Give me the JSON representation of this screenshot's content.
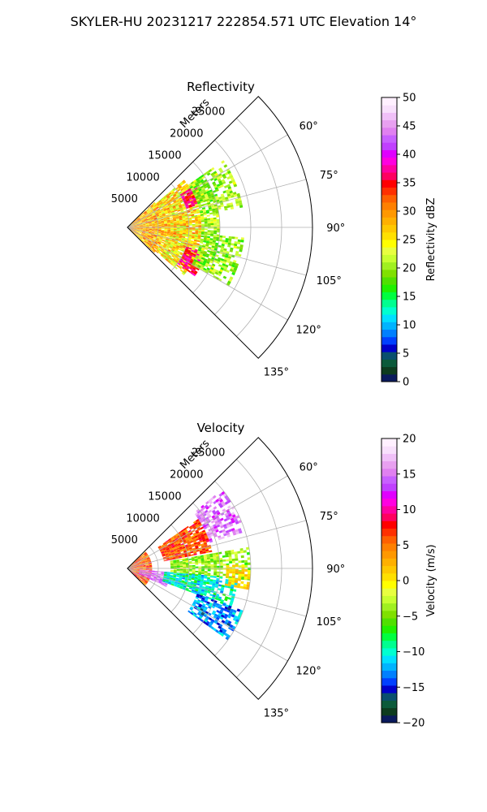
{
  "figure": {
    "title": "SKYLER-HU  20231217  222854.571 UTC Elevation 14°"
  },
  "chart_data": [
    {
      "type": "heatmap",
      "title": "Reflectivity",
      "range_label": "Meters",
      "range_ticks": [
        5000,
        10000,
        15000,
        20000,
        25000
      ],
      "range_tick_labels": [
        "5000",
        "10000",
        "15000",
        "20000",
        "25000"
      ],
      "rmax": 30000,
      "azimuth_range": [
        45,
        135
      ],
      "azimuth_ticks": [
        60,
        75,
        90,
        105,
        120,
        135
      ],
      "azimuth_tick_labels": [
        "60°",
        "75°",
        "90°",
        "105°",
        "120°",
        "135°"
      ],
      "grid": true,
      "colorbar": {
        "label": "Reflectivity dBZ",
        "range": [
          0,
          50
        ],
        "ticks": [
          0,
          5,
          10,
          15,
          20,
          25,
          30,
          35,
          40,
          45,
          50
        ],
        "tick_labels": [
          "0",
          "5",
          "10",
          "15",
          "20",
          "25",
          "30",
          "35",
          "40",
          "45",
          "50"
        ],
        "colors": [
          "#0a1a5c",
          "#0d3b1e",
          "#0b5a3a",
          "#0a4f6e",
          "#0000c8",
          "#0040ff",
          "#0080ff",
          "#00b4ff",
          "#00e0ff",
          "#00ffd0",
          "#00ff90",
          "#00ff40",
          "#20f000",
          "#50e000",
          "#80e000",
          "#a0f020",
          "#c8ff30",
          "#e8ff40",
          "#ffff00",
          "#ffe000",
          "#ffc800",
          "#ffb000",
          "#ff9800",
          "#ff8000",
          "#ff6000",
          "#ff3000",
          "#ff0000",
          "#ff0060",
          "#ff00a0",
          "#ff00e0",
          "#e000ff",
          "#c040ff",
          "#c860ff",
          "#e080f0",
          "#e8a0f0",
          "#f0c0f8",
          "#f8e0fc",
          "#fff0ff"
        ]
      },
      "field_model": {
        "description_units": "dBZ",
        "regions": [
          {
            "r0": 0,
            "r1": 6000,
            "a0": 47,
            "a1": 133,
            "v": 28,
            "jit": 6
          },
          {
            "r0": 6000,
            "r1": 12000,
            "a0": 50,
            "a1": 130,
            "v": 26,
            "jit": 6
          },
          {
            "r0": 10000,
            "r1": 13000,
            "a0": 58,
            "a1": 72,
            "v": 36,
            "jit": 3
          },
          {
            "r0": 10000,
            "r1": 13500,
            "a0": 108,
            "a1": 125,
            "v": 36,
            "jit": 3
          },
          {
            "r0": 12000,
            "r1": 19000,
            "a0": 55,
            "a1": 80,
            "v": 20,
            "jit": 4
          },
          {
            "r0": 12000,
            "r1": 19000,
            "a0": 95,
            "a1": 120,
            "v": 20,
            "jit": 4
          },
          {
            "r0": 12000,
            "r1": 15000,
            "a0": 80,
            "a1": 95,
            "v": 21,
            "jit": 4
          }
        ]
      }
    },
    {
      "type": "heatmap",
      "title": "Velocity",
      "range_label": "Meters",
      "range_ticks": [
        5000,
        10000,
        15000,
        20000,
        25000
      ],
      "range_tick_labels": [
        "5000",
        "10000",
        "15000",
        "20000",
        "25000"
      ],
      "rmax": 30000,
      "azimuth_range": [
        45,
        135
      ],
      "azimuth_ticks": [
        60,
        75,
        90,
        105,
        120,
        135
      ],
      "azimuth_tick_labels": [
        "60°",
        "75°",
        "90°",
        "105°",
        "120°",
        "135°"
      ],
      "grid": true,
      "colorbar": {
        "label": "Velocity (m/s)",
        "range": [
          -20,
          20
        ],
        "ticks": [
          -20,
          -15,
          -10,
          -5,
          0,
          5,
          10,
          15,
          20
        ],
        "tick_labels": [
          "−20",
          "−15",
          "−10",
          "−5",
          "0",
          "5",
          "10",
          "15",
          "20"
        ],
        "colors": [
          "#0a1a5c",
          "#0d3b1e",
          "#0b5a3a",
          "#0a4f6e",
          "#0000c8",
          "#0040ff",
          "#0080ff",
          "#00b4ff",
          "#00e0ff",
          "#00ffd0",
          "#00ff90",
          "#00ff40",
          "#20f000",
          "#50e000",
          "#80e000",
          "#a0f020",
          "#c8ff30",
          "#e8ff40",
          "#ffff00",
          "#ffe000",
          "#ffc800",
          "#ffb000",
          "#ff9800",
          "#ff8000",
          "#ff6000",
          "#ff3000",
          "#ff0000",
          "#ff0060",
          "#ff00a0",
          "#ff00e0",
          "#e000ff",
          "#c040ff",
          "#c860ff",
          "#e080f0",
          "#e8a0f0",
          "#f0c0f8",
          "#f8e0fc",
          "#fff0ff"
        ]
      },
      "field_model": {
        "description_units": "m/s",
        "regions": [
          {
            "r0": 0,
            "r1": 4000,
            "a0": 47,
            "a1": 133,
            "v": 6,
            "jit": 4
          },
          {
            "r0": 2000,
            "r1": 7000,
            "a0": 95,
            "a1": 115,
            "v": 15,
            "jit": 3
          },
          {
            "r0": 6000,
            "r1": 14000,
            "a0": 55,
            "a1": 78,
            "v": 6,
            "jit": 3
          },
          {
            "r0": 14000,
            "r1": 20000,
            "a0": 50,
            "a1": 72,
            "v": 15,
            "jit": 3
          },
          {
            "r0": 7000,
            "r1": 20000,
            "a0": 80,
            "a1": 95,
            "v": -4,
            "jit": 3
          },
          {
            "r0": 6000,
            "r1": 18000,
            "a0": 95,
            "a1": 110,
            "v": -10,
            "jit": 3
          },
          {
            "r0": 12000,
            "r1": 20000,
            "a0": 110,
            "a1": 125,
            "v": -13,
            "jit": 3
          },
          {
            "r0": 16000,
            "r1": 20000,
            "a0": 88,
            "a1": 100,
            "v": 1,
            "jit": 2
          }
        ]
      }
    }
  ]
}
